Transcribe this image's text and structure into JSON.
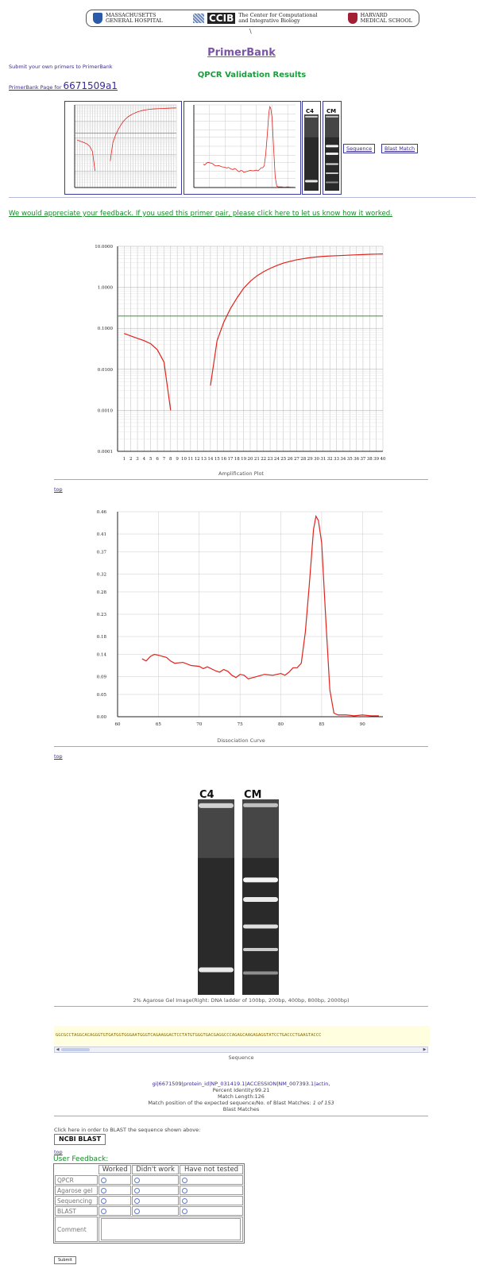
{
  "banner": {
    "mgh_line1": "MASSACHUSETTS",
    "mgh_line2": "GENERAL HOSPITAL",
    "ccib_logo": "CCIB",
    "ccib_line1": "The Center for Computational",
    "ccib_line2": "and Integrative Biology",
    "harvard_line1": "HARVARD",
    "harvard_line2": "MEDICAL SCHOOL"
  },
  "slash": "\\",
  "title": "PrimerBank",
  "submit_primers": "Submit your own primers to PrimerBank",
  "qpcr_title": "QPCR Validation Results",
  "primerbank_page_prefix": "PrimerBank Page for",
  "primer_id": "6671509a1",
  "buttons": {
    "sequence": "Sequence",
    "blast_match": "Blast Match"
  },
  "feedback_link": "We would appreciate your feedback. If you used this primer pair, please click here to let us know how it worked.",
  "amplification": {
    "caption": "Amplification Plot",
    "y_ticks": [
      "10.0000",
      "1.0000",
      "0.1000",
      "0.0100",
      "0.0010",
      "0.0001"
    ]
  },
  "dissociation": {
    "caption": "Dissociation Curve",
    "y_ticks": [
      "0.46",
      "0.41",
      "0.37",
      "0.32",
      "0.28",
      "0.23",
      "0.18",
      "0.14",
      "0.09",
      "0.05",
      "0.00"
    ],
    "x_ticks": [
      "60",
      "65",
      "70",
      "75",
      "80",
      "85",
      "90"
    ]
  },
  "gel": {
    "lane1": "C4",
    "lane2": "CM",
    "caption": "2% Agarose Gel Image(Right: DNA ladder of 100bp, 200bp, 400bp, 800bp, 2000bp)"
  },
  "top_link": "top",
  "sequence": {
    "text": "GGCGCCTAGGCACAGGGTGTGATGGTGGGAATGGGTCAGAAGGACTCCTATGTGGGTGACGAGGCCCAGAGCAAGAGAGGTATCCTGACCCTGAAGTACCC",
    "caption": "Sequence"
  },
  "blast": {
    "link": "gi|6671509|protein_id|NP_031419.1|ACCESSION|NM_007393.1|actin,",
    "percent_identity": "Percent Identity:99.21",
    "match_length": "Match Length:126",
    "match_position_label": "Match position of the expected sequence/No. of Blast Matches:",
    "match_position_value": "1 of 153",
    "caption": "Blast Matches",
    "instruction": "Click here in order to BLAST the sequence shown above:",
    "button": "NCBI BLAST"
  },
  "user_feedback": {
    "title": "User Feedback:",
    "columns": [
      "Worked",
      "Didn't work",
      "Have not tested"
    ],
    "rows": [
      "QPCR",
      "Agarose gel",
      "Sequencing",
      "BLAST"
    ],
    "comment_label": "Comment",
    "submit": "Submit"
  },
  "chart_data": [
    {
      "type": "line",
      "xlabel": "Amplification Plot",
      "ylabel": "",
      "y_scale": "log",
      "ylim": [
        0.0001,
        10
      ],
      "xlim": [
        0,
        40
      ],
      "x_ticks": [
        1,
        2,
        3,
        4,
        5,
        6,
        7,
        8,
        9,
        10,
        11,
        12,
        13,
        14,
        15,
        16,
        17,
        18,
        19,
        20,
        21,
        22,
        23,
        24,
        25,
        26,
        27,
        28,
        29,
        30,
        31,
        32,
        33,
        34,
        35,
        36,
        37,
        38,
        39,
        40
      ],
      "threshold": 0.2,
      "series": [
        {
          "x": [
            1,
            2,
            3,
            4,
            5,
            6,
            7,
            8
          ],
          "y": [
            0.075,
            0.065,
            0.057,
            0.05,
            0.042,
            0.03,
            0.015,
            0.001
          ]
        },
        {
          "x": [
            14,
            15,
            16,
            17,
            18,
            19,
            20,
            21,
            22,
            23,
            24,
            25,
            26,
            27,
            28,
            29,
            30,
            31,
            32,
            33,
            34,
            35,
            36,
            37,
            38,
            39,
            40
          ],
          "y": [
            0.004,
            0.05,
            0.14,
            0.3,
            0.55,
            0.95,
            1.4,
            1.9,
            2.4,
            2.9,
            3.4,
            3.9,
            4.3,
            4.7,
            5.0,
            5.3,
            5.5,
            5.7,
            5.8,
            5.9,
            6.0,
            6.1,
            6.2,
            6.3,
            6.4,
            6.45,
            6.5
          ]
        }
      ],
      "grid": true
    },
    {
      "type": "line",
      "xlabel": "Dissociation Curve",
      "ylabel": "",
      "ylim": [
        0,
        0.46
      ],
      "xlim": [
        60,
        92.5
      ],
      "series": [
        {
          "x": [
            63,
            63.5,
            64,
            64.5,
            65,
            66,
            66.5,
            67,
            68,
            69,
            70,
            70.5,
            71,
            72,
            72.5,
            73,
            73.5,
            74,
            74.5,
            75,
            75.5,
            76,
            77,
            78,
            79,
            80,
            80.5,
            81,
            81.5,
            82,
            82.5,
            83,
            83.5,
            84,
            84.3,
            84.6,
            85,
            85.5,
            86,
            86.5,
            87,
            88,
            89,
            90,
            91,
            92
          ],
          "y": [
            0.13,
            0.125,
            0.135,
            0.14,
            0.138,
            0.133,
            0.125,
            0.12,
            0.122,
            0.115,
            0.113,
            0.108,
            0.112,
            0.103,
            0.1,
            0.106,
            0.102,
            0.093,
            0.088,
            0.095,
            0.093,
            0.085,
            0.09,
            0.095,
            0.093,
            0.097,
            0.093,
            0.1,
            0.11,
            0.11,
            0.12,
            0.19,
            0.3,
            0.42,
            0.45,
            0.44,
            0.39,
            0.22,
            0.06,
            0.008,
            0.004,
            0.004,
            0.002,
            0.004,
            0.002,
            0.002
          ]
        }
      ],
      "grid": true
    }
  ],
  "colors": {
    "title": "#7a55a8",
    "qpcr_title": "#1c9a3c",
    "feedback": "#1a8a2a",
    "link": "#3a2a9a",
    "curve": "#e0231c",
    "threshold": "#3cac3c",
    "thumb_border": "#3a3aa0"
  }
}
